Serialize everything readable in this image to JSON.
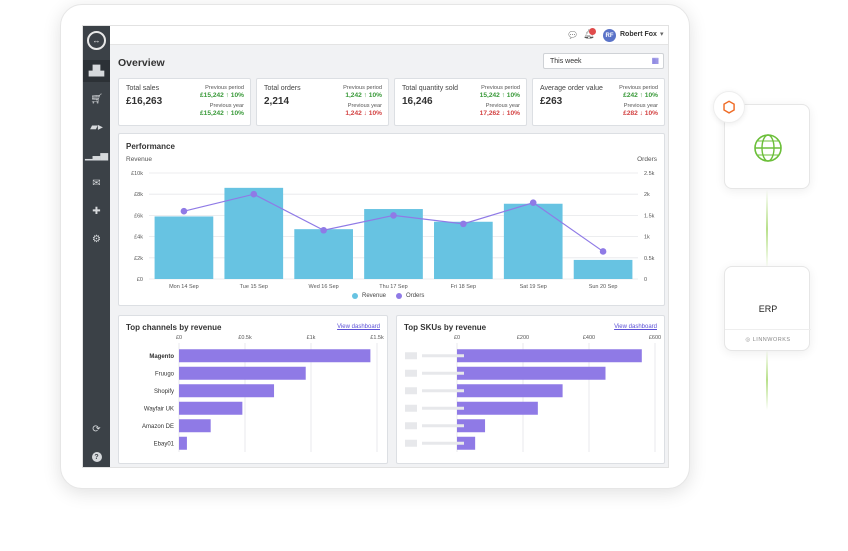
{
  "topbar": {
    "user_initials": "RF",
    "user_name": "Robert Fox",
    "notif_count": "",
    "chat_icon": "chat-icon",
    "bell_icon": "bell-icon"
  },
  "page": {
    "title": "Overview",
    "period": "This week"
  },
  "kpis": [
    {
      "title": "Total sales",
      "value": "£16,263",
      "prev_period_label": "Previous period",
      "prev_period_value": "£15,242",
      "prev_period_change": "↑ 10%",
      "prev_period_dir": "up",
      "prev_year_label": "Previous year",
      "prev_year_value": "£15,242",
      "prev_year_change": "↑ 10%",
      "prev_year_dir": "up"
    },
    {
      "title": "Total orders",
      "value": "2,214",
      "prev_period_label": "Previous period",
      "prev_period_value": "1,242",
      "prev_period_change": "↑ 10%",
      "prev_period_dir": "up",
      "prev_year_label": "Previous year",
      "prev_year_value": "1,242",
      "prev_year_change": "↓ 10%",
      "prev_year_dir": "down"
    },
    {
      "title": "Total quantity sold",
      "value": "16,246",
      "prev_period_label": "Previous period",
      "prev_period_value": "15,242",
      "prev_period_change": "↑ 10%",
      "prev_period_dir": "up",
      "prev_year_label": "Previous year",
      "prev_year_value": "17,262",
      "prev_year_change": "↓ 10%",
      "prev_year_dir": "down"
    },
    {
      "title": "Average order value",
      "value": "£263",
      "prev_period_label": "Previous period",
      "prev_period_value": "£242",
      "prev_period_change": "↑ 10%",
      "prev_period_dir": "up",
      "prev_year_label": "Previous year",
      "prev_year_value": "£282",
      "prev_year_change": "↓ 10%",
      "prev_year_dir": "down"
    }
  ],
  "performance": {
    "title": "Performance",
    "left_axis": "Revenue",
    "right_axis": "Orders",
    "legend_revenue": "Revenue",
    "legend_orders": "Orders"
  },
  "top_channels": {
    "title": "Top channels by revenue",
    "link": "View dashboard"
  },
  "top_skus": {
    "title": "Top SKUs by revenue",
    "link": "View dashboard"
  },
  "integrations": {
    "erp_label": "ERP",
    "erp_brand": "LINNWORKS",
    "magento_icon": "magento-icon",
    "globe_icon": "globe-icon"
  },
  "chart_data": [
    {
      "type": "bar",
      "name": "Performance",
      "categories": [
        "Mon 14 Sep",
        "Tue 15 Sep",
        "Wed 16 Sep",
        "Thu 17 Sep",
        "Fri 18 Sep",
        "Sat 19 Sep",
        "Sun 20 Sep"
      ],
      "series": [
        {
          "name": "Revenue",
          "axis": "left",
          "values": [
            5900,
            8600,
            4700,
            6600,
            5400,
            7100,
            1800
          ]
        },
        {
          "name": "Orders",
          "axis": "right",
          "type": "line",
          "values": [
            1600,
            2000,
            1150,
            1500,
            1300,
            1800,
            650
          ]
        }
      ],
      "y_left": {
        "range": [
          0,
          10000
        ],
        "ticks": [
          "£0",
          "£2k",
          "£4k",
          "£6k",
          "£8k",
          "£10k"
        ]
      },
      "y_right": {
        "range": [
          0,
          2500
        ],
        "ticks": [
          "0",
          "0.5k",
          "1k",
          "1.5k",
          "2k",
          "2.5k"
        ]
      },
      "colors": {
        "Revenue": "#67c3e2",
        "Orders": "#8f7ae6"
      }
    },
    {
      "type": "bar",
      "orientation": "horizontal",
      "name": "Top channels by revenue",
      "categories": [
        "Magento",
        "Fruugo",
        "Shopify",
        "Wayfair UK",
        "Amazon DE",
        "Ebay01"
      ],
      "values": [
        1450,
        960,
        720,
        480,
        240,
        60
      ],
      "x_range": [
        0,
        1500
      ],
      "x_ticks": [
        "£0",
        "£0.5k",
        "£1k",
        "£1.5k"
      ],
      "color": "#8f7ae6"
    },
    {
      "type": "bar",
      "orientation": "horizontal",
      "name": "Top SKUs by revenue",
      "values": [
        560,
        450,
        320,
        245,
        85,
        55
      ],
      "x_range": [
        0,
        600
      ],
      "x_ticks": [
        "£0",
        "£200",
        "£400",
        "£600"
      ],
      "color": "#8f7ae6"
    }
  ]
}
